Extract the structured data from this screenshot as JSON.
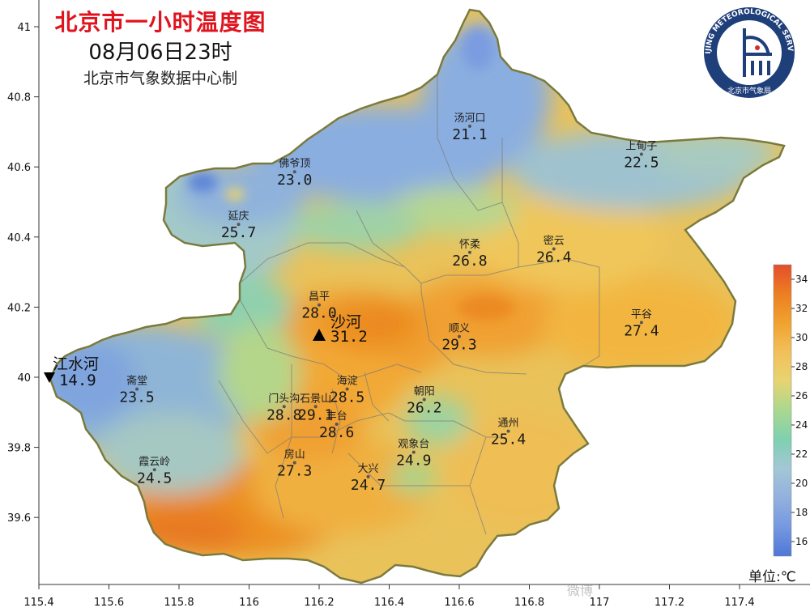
{
  "header": {
    "title": "北京市一小时温度图",
    "datetime": "08月06日23时",
    "source": "北京市气象数据中心制"
  },
  "logo": {
    "text": "BEIJING METEOROLOGICAL SERVICE",
    "cn": "北京市气象局"
  },
  "unit_label": "单位:℃",
  "watermark": "微博",
  "axes": {
    "x_ticks": [
      "115.4",
      "115.6",
      "115.8",
      "116",
      "116.2",
      "116.4",
      "116.6",
      "116.8",
      "117",
      "117.2",
      "117.4"
    ],
    "y_ticks": [
      "41",
      "40.8",
      "40.6",
      "40.4",
      "40.2",
      "40",
      "39.8",
      "39.6"
    ]
  },
  "legend": {
    "ticks": [
      "34",
      "32",
      "30",
      "28",
      "26",
      "24",
      "22",
      "20",
      "18",
      "16"
    ],
    "colors": [
      "#e8552a",
      "#ec7d22",
      "#f09a2a",
      "#f2b33c",
      "#f1c65a",
      "#e9d36e",
      "#b7d88a",
      "#7fceb2",
      "#93c3cf",
      "#92b0de",
      "#7c9be0",
      "#5f84d8"
    ]
  },
  "stations": [
    {
      "name": "汤河口",
      "value": "21.1",
      "lon": 116.63,
      "lat": 40.73
    },
    {
      "name": "上甸子",
      "value": "22.5",
      "lon": 117.12,
      "lat": 40.65
    },
    {
      "name": "佛爷顶",
      "value": "23.0",
      "lon": 116.13,
      "lat": 40.6
    },
    {
      "name": "延庆",
      "value": "25.7",
      "lon": 115.97,
      "lat": 40.45
    },
    {
      "name": "怀柔",
      "value": "26.8",
      "lon": 116.63,
      "lat": 40.37
    },
    {
      "name": "密云",
      "value": "26.4",
      "lon": 116.87,
      "lat": 40.38
    },
    {
      "name": "昌平",
      "value": "28.0",
      "lon": 116.2,
      "lat": 40.22
    },
    {
      "name": "顺义",
      "value": "29.3",
      "lon": 116.6,
      "lat": 40.13
    },
    {
      "name": "平谷",
      "value": "27.4",
      "lon": 117.12,
      "lat": 40.17
    },
    {
      "name": "斋堂",
      "value": "23.5",
      "lon": 115.68,
      "lat": 39.98
    },
    {
      "name": "海淀",
      "value": "28.5",
      "lon": 116.28,
      "lat": 39.98
    },
    {
      "name": "石景山",
      "value": "29.1",
      "lon": 116.19,
      "lat": 39.93
    },
    {
      "name": "朝阳",
      "value": "26.2",
      "lon": 116.5,
      "lat": 39.95
    },
    {
      "name": "门头沟",
      "value": "28.8",
      "lon": 116.1,
      "lat": 39.93
    },
    {
      "name": "丰台",
      "value": "28.6",
      "lon": 116.25,
      "lat": 39.88
    },
    {
      "name": "通州",
      "value": "25.4",
      "lon": 116.74,
      "lat": 39.86
    },
    {
      "name": "观象台",
      "value": "24.9",
      "lon": 116.47,
      "lat": 39.8
    },
    {
      "name": "房山",
      "value": "27.3",
      "lon": 116.13,
      "lat": 39.77
    },
    {
      "name": "霞云岭",
      "value": "24.5",
      "lon": 115.73,
      "lat": 39.75
    },
    {
      "name": "大兴",
      "value": "24.7",
      "lon": 116.34,
      "lat": 39.73
    }
  ],
  "extremes": {
    "max": {
      "name": "沙河",
      "value": "31.2",
      "lon": 116.2,
      "lat": 40.12
    },
    "min": {
      "name": "江水河",
      "value": "14.9",
      "lon": 115.43,
      "lat": 40.0
    }
  }
}
